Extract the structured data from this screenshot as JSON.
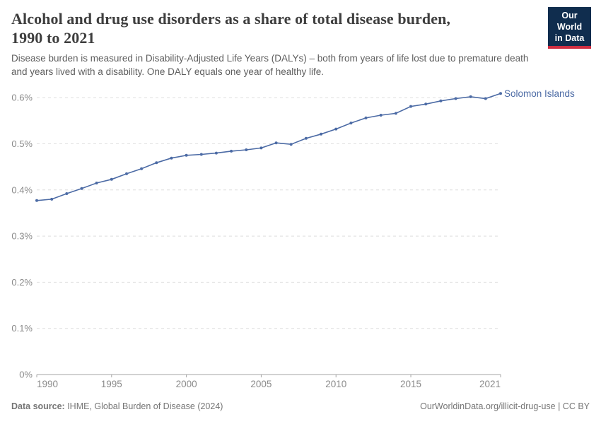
{
  "header": {
    "title_lines": [
      "Alcohol and drug use disorders as a share of total disease burden,",
      "1990 to 2021"
    ],
    "subtitle_lines": [
      "Disease burden is measured in Disability-Adjusted Life Years (DALYs) – both from years of life lost due to premature death",
      "and years lived with a disability. One DALY equals one year of healthy life."
    ],
    "logo": {
      "line1": "Our World",
      "line2": "in Data"
    }
  },
  "chart_data": {
    "type": "line",
    "title": "Alcohol and drug use disorders as a share of total disease burden, 1990 to 2021",
    "subtitle": "Disease burden is measured in Disability-Adjusted Life Years (DALYs) – both from years of life lost due to premature death and years lived with a disability. One DALY equals one year of healthy life.",
    "unit": "%",
    "xlabel": "",
    "ylabel": "",
    "ylim": [
      0,
      0.62
    ],
    "grid": "horizontal-dashed",
    "legend_position": "line-end-label",
    "x": [
      1990,
      1991,
      1992,
      1993,
      1994,
      1995,
      1996,
      1997,
      1998,
      1999,
      2000,
      2001,
      2002,
      2003,
      2004,
      2005,
      2006,
      2007,
      2008,
      2009,
      2010,
      2011,
      2012,
      2013,
      2014,
      2015,
      2016,
      2017,
      2018,
      2019,
      2020,
      2021
    ],
    "series": [
      {
        "name": "Solomon Islands",
        "values": [
          0.377,
          0.38,
          0.392,
          0.403,
          0.415,
          0.423,
          0.435,
          0.446,
          0.459,
          0.469,
          0.475,
          0.477,
          0.48,
          0.484,
          0.487,
          0.491,
          0.502,
          0.499,
          0.512,
          0.521,
          0.532,
          0.545,
          0.556,
          0.562,
          0.566,
          0.581,
          0.586,
          0.593,
          0.598,
          0.602,
          0.598,
          0.609
        ]
      }
    ],
    "y_ticks": [
      {
        "value": 0,
        "label": "0%"
      },
      {
        "value": 0.1,
        "label": "0.1%"
      },
      {
        "value": 0.2,
        "label": "0.2%"
      },
      {
        "value": 0.3,
        "label": "0.3%"
      },
      {
        "value": 0.4,
        "label": "0.4%"
      },
      {
        "value": 0.5,
        "label": "0.5%"
      },
      {
        "value": 0.6,
        "label": "0.6%"
      }
    ],
    "x_ticks": [
      {
        "value": 1990,
        "label": "1990"
      },
      {
        "value": 1995,
        "label": "1995"
      },
      {
        "value": 2000,
        "label": "2000"
      },
      {
        "value": 2005,
        "label": "2005"
      },
      {
        "value": 2010,
        "label": "2010"
      },
      {
        "value": 2015,
        "label": "2015"
      },
      {
        "value": 2021,
        "label": "2021"
      }
    ]
  },
  "footer": {
    "source_label": "Data source:",
    "source_text": " IHME, Global Burden of Disease (2024)",
    "credit": "OurWorldinData.org/illicit-drug-use | CC BY"
  },
  "theme": {
    "line_color": "#4c6ba5",
    "entity_label_color": "#4c6ba5",
    "grid_color": "#dedede",
    "axis_text_color": "#8a8a8a",
    "axis_line_color": "#a5a5a5",
    "title_color": "#3e3e3e",
    "subtitle_color": "#5e5e5e",
    "footer_color": "#757575",
    "logo_bg": "#102d4e",
    "logo_stripe": "#cf2e41"
  }
}
